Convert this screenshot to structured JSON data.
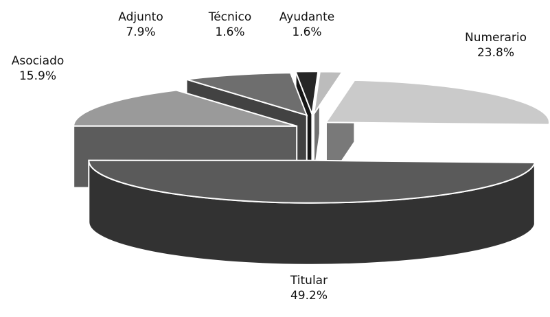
{
  "chart_data": {
    "type": "pie",
    "categories": [
      "Titular",
      "Asociado",
      "Adjunto",
      "Técnico",
      "Ayudante",
      "Numerario"
    ],
    "values": [
      49.2,
      15.9,
      7.9,
      1.6,
      1.6,
      23.8
    ],
    "value_labels": [
      "49.2%",
      "15.9%",
      "7.9%",
      "1.6%",
      "1.6%",
      "23.8%"
    ],
    "colors": [
      "#5a5a5a",
      "#9a9a9a",
      "#6e6e6e",
      "#262626",
      "#bcbcbc",
      "#cacaca"
    ]
  }
}
